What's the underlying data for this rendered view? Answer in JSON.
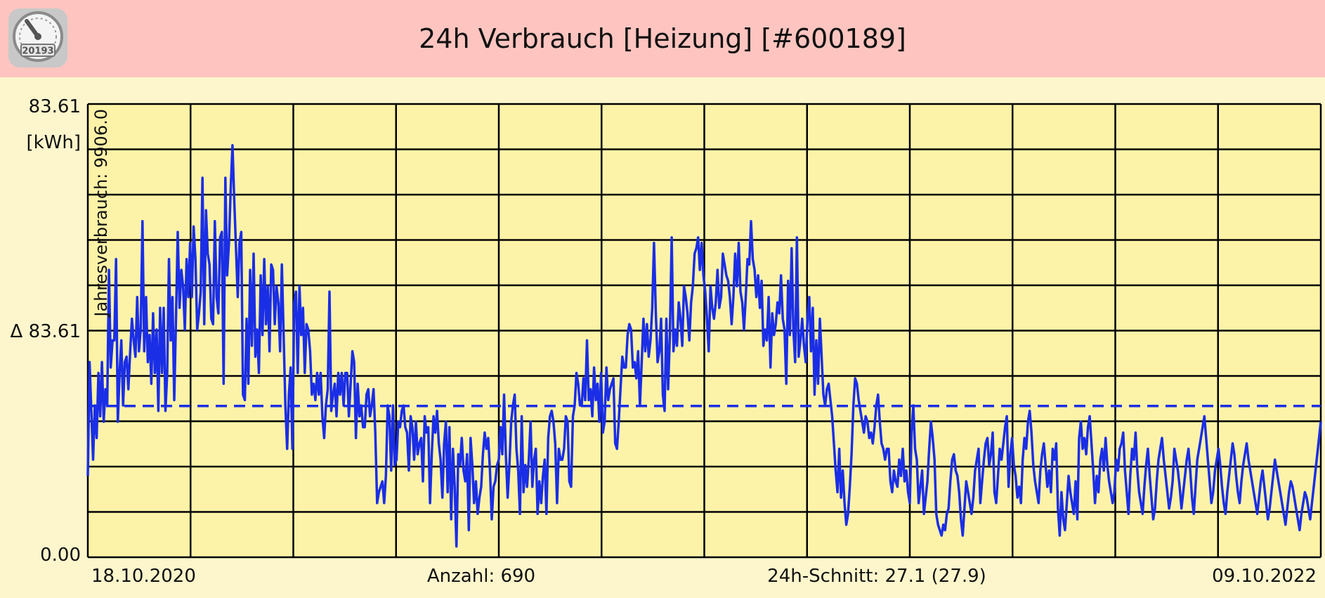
{
  "header": {
    "title": "24h Verbrauch [Heizung] [#600189]",
    "app_icon": {
      "icon": "meter-gauge-icon",
      "counter_text": "20193"
    }
  },
  "colors": {
    "header_bg": "#fec5c0",
    "page_bg": "#fdf6cc",
    "plot_bg": "#fdf3a8",
    "grid": "#000000",
    "series": "#1a2ee6"
  },
  "chart_data": {
    "type": "line",
    "grid": true,
    "y_axis": {
      "max_label": "83.61",
      "unit_label": "[kWh]",
      "mid_label": "Δ 83.61",
      "min_label": "0.00",
      "rotated_label": "Jahresverbrauch: 9906.0",
      "ylim": [
        0,
        83.61
      ]
    },
    "footer": {
      "start_date": "18.10.2020",
      "count": "Anzahl: 690",
      "average": "24h-Schnitt: 27.1 (27.9)",
      "end_date": "09.10.2022"
    },
    "average_line_value": 27.9,
    "series": [
      {
        "values": [
          15,
          36,
          27,
          18,
          28,
          22,
          34,
          26,
          36,
          25,
          31,
          28,
          53,
          35,
          40,
          40,
          55,
          25,
          34,
          40,
          28,
          36,
          37,
          31,
          38,
          44,
          40,
          37,
          48,
          38,
          42,
          62,
          38,
          48,
          36,
          41,
          32,
          45,
          34,
          42,
          27,
          46,
          34,
          46,
          27,
          34,
          55,
          40,
          48,
          29,
          44,
          60,
          46,
          53,
          50,
          42,
          55,
          48,
          58,
          48,
          61,
          55,
          42,
          45,
          49,
          70,
          43,
          64,
          56,
          54,
          44,
          43,
          62,
          48,
          45,
          59,
          60,
          32,
          70,
          52,
          58,
          68,
          76,
          66,
          57,
          48,
          58,
          60,
          30,
          29,
          44,
          32,
          53,
          39,
          56,
          37,
          42,
          34,
          52,
          41,
          55,
          43,
          50,
          38,
          54,
          53,
          43,
          50,
          47,
          38,
          54,
          41,
          28,
          20,
          30,
          35,
          20,
          47,
          49,
          34,
          50,
          41,
          46,
          34,
          43,
          42,
          38,
          30,
          32,
          29,
          34,
          30,
          34,
          26,
          22,
          28,
          31,
          49,
          27,
          30,
          32,
          26,
          34,
          30,
          34,
          28,
          34,
          34,
          26,
          32,
          38,
          36,
          22,
          32,
          26,
          28,
          24,
          24,
          30,
          31,
          26,
          28,
          31,
          23,
          10,
          12,
          13,
          14,
          10,
          15,
          28,
          26,
          16,
          28,
          17,
          18,
          25,
          24,
          27,
          28,
          24,
          23,
          16,
          26,
          24,
          18,
          25,
          19,
          21,
          22,
          14,
          26,
          23,
          24,
          10,
          19,
          26,
          23,
          27,
          21,
          18,
          11,
          21,
          25,
          12,
          24,
          7,
          20,
          13,
          2,
          19,
          17,
          22,
          16,
          14,
          19,
          5,
          22,
          17,
          10,
          14,
          8,
          11,
          13,
          19,
          23,
          20,
          22,
          16,
          7,
          13,
          14,
          17,
          18,
          24,
          19,
          30,
          19,
          11,
          17,
          25,
          28,
          30,
          20,
          16,
          8,
          26,
          12,
          17,
          13,
          18,
          25,
          13,
          18,
          20,
          8,
          14,
          10,
          15,
          18,
          8,
          22,
          26,
          27,
          25,
          21,
          10,
          20,
          18,
          18,
          20,
          26,
          25,
          14,
          13,
          26,
          28,
          34,
          32,
          28,
          28,
          33,
          29,
          40,
          29,
          31,
          26,
          35,
          29,
          32,
          25,
          34,
          23,
          25,
          35,
          29,
          31,
          32,
          33,
          21,
          20,
          25,
          31,
          37,
          35,
          35,
          41,
          43,
          42,
          35,
          36,
          33,
          38,
          28,
          36,
          44,
          38,
          43,
          37,
          40,
          46,
          58,
          45,
          36,
          38,
          44,
          30,
          27,
          44,
          31,
          41,
          59,
          38,
          42,
          39,
          47,
          44,
          39,
          50,
          48,
          45,
          40,
          47,
          50,
          56,
          57,
          59,
          53,
          58,
          52,
          49,
          44,
          38,
          50,
          46,
          44,
          47,
          53,
          46,
          48,
          56,
          54,
          52,
          51,
          48,
          43,
          48,
          56,
          50,
          58,
          49,
          47,
          42,
          48,
          55,
          54,
          62,
          55,
          53,
          48,
          52,
          46,
          51,
          39,
          42,
          40,
          48,
          35,
          45,
          41,
          43,
          47,
          45,
          52,
          44,
          42,
          32,
          51,
          41,
          57,
          42,
          36,
          59,
          37,
          40,
          44,
          39,
          36,
          44,
          48,
          38,
          46,
          30,
          40,
          32,
          44,
          37,
          30,
          28,
          31,
          32,
          29,
          26,
          21,
          16,
          12,
          20,
          11,
          16,
          10,
          6,
          8,
          13,
          19,
          28,
          33,
          32,
          29,
          27,
          25,
          23,
          26,
          25,
          22,
          23,
          21,
          24,
          28,
          30,
          25,
          21,
          20,
          18,
          20,
          20,
          14,
          12,
          16,
          14,
          13,
          18,
          15,
          20,
          14,
          16,
          12,
          10,
          23,
          28,
          20,
          18,
          10,
          13,
          16,
          8,
          11,
          14,
          20,
          25,
          22,
          18,
          8,
          6,
          5,
          4,
          6,
          5,
          8,
          9,
          14,
          18,
          19,
          16,
          15,
          12,
          7,
          4,
          9,
          14,
          12,
          10,
          8,
          11,
          16,
          18,
          20,
          10,
          14,
          18,
          21,
          22,
          17,
          19,
          23,
          12,
          10,
          15,
          20,
          18,
          21,
          24,
          26,
          13,
          19,
          22,
          17,
          15,
          11,
          13,
          10,
          18,
          22,
          20,
          25,
          27,
          23,
          17,
          14,
          12,
          10,
          16,
          19,
          21,
          17,
          13,
          16,
          12,
          20,
          18,
          21,
          9,
          4,
          12,
          7,
          5,
          10,
          15,
          12,
          10,
          8,
          14,
          7,
          22,
          25,
          20,
          22,
          19,
          24,
          26,
          21,
          16,
          10,
          15,
          12,
          18,
          20,
          16,
          22,
          17,
          14,
          12,
          10,
          12,
          18,
          16,
          20,
          21,
          23,
          16,
          12,
          8,
          15,
          20,
          18,
          23,
          16,
          12,
          10,
          8,
          13,
          17,
          20,
          15,
          11,
          7,
          9,
          14,
          18,
          20,
          22,
          18,
          15,
          12,
          9,
          11,
          14,
          20,
          18,
          16,
          13,
          9,
          12,
          15,
          18,
          20,
          16,
          11,
          8,
          13,
          18,
          20,
          22,
          24,
          26,
          22,
          18,
          14,
          10,
          12,
          16,
          18,
          20,
          17,
          13,
          10,
          8,
          12,
          15,
          18,
          21,
          19,
          15,
          12,
          10,
          14,
          17,
          19,
          21,
          18,
          16,
          14,
          12,
          10,
          8,
          11,
          14,
          16,
          13,
          10,
          7,
          9,
          12,
          15,
          18,
          16,
          14,
          12,
          10,
          8,
          6,
          9,
          12,
          14,
          13,
          11,
          9,
          7,
          5,
          8,
          10,
          12,
          11,
          9,
          7,
          10,
          13,
          16,
          19,
          22,
          25
        ]
      }
    ]
  }
}
